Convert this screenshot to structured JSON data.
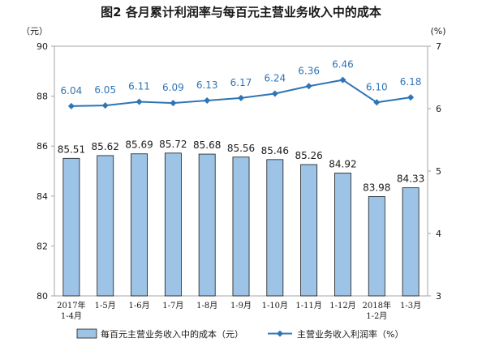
{
  "chart_data": {
    "type": "bar",
    "title": "图2  各月累计利润率与每百元主营业务收入中的成本",
    "left_axis_unit": "（元）",
    "right_axis_unit": "(%)",
    "categories": [
      [
        "2017年",
        "1-4月"
      ],
      [
        "1-5月"
      ],
      [
        "1-6月"
      ],
      [
        "1-7月"
      ],
      [
        "1-8月"
      ],
      [
        "1-9月"
      ],
      [
        "1-10月"
      ],
      [
        "1-11月"
      ],
      [
        "1-12月"
      ],
      [
        "2018年",
        "1-2月"
      ],
      [
        "1-3月"
      ]
    ],
    "left_ylim": [
      80,
      90
    ],
    "left_yticks": [
      80,
      82,
      84,
      86,
      88,
      90
    ],
    "right_ylim": [
      3,
      7
    ],
    "right_yticks": [
      3,
      4,
      5,
      6,
      7
    ],
    "series": [
      {
        "name": "每百元主营业务收入中的成本（元）",
        "type": "bar",
        "axis": "left",
        "color": "#9dc3e6",
        "values": [
          85.51,
          85.62,
          85.69,
          85.72,
          85.68,
          85.56,
          85.46,
          85.26,
          84.92,
          83.98,
          84.33
        ],
        "labels": [
          "85.51",
          "85.62",
          "85.69",
          "85.72",
          "85.68",
          "85.56",
          "85.46",
          "85.26",
          "84.92",
          "83.98",
          "84.33"
        ]
      },
      {
        "name": "主营业务收入利润率（%）",
        "type": "line",
        "axis": "right",
        "color": "#2e75b6",
        "values": [
          6.04,
          6.05,
          6.11,
          6.09,
          6.13,
          6.17,
          6.24,
          6.36,
          6.46,
          6.1,
          6.18
        ],
        "labels": [
          "6.04",
          "6.05",
          "6.11",
          "6.09",
          "6.13",
          "6.17",
          "6.24",
          "6.36",
          "6.46",
          "6.10",
          "6.18"
        ]
      }
    ],
    "legend_position": "bottom",
    "grid": false
  }
}
